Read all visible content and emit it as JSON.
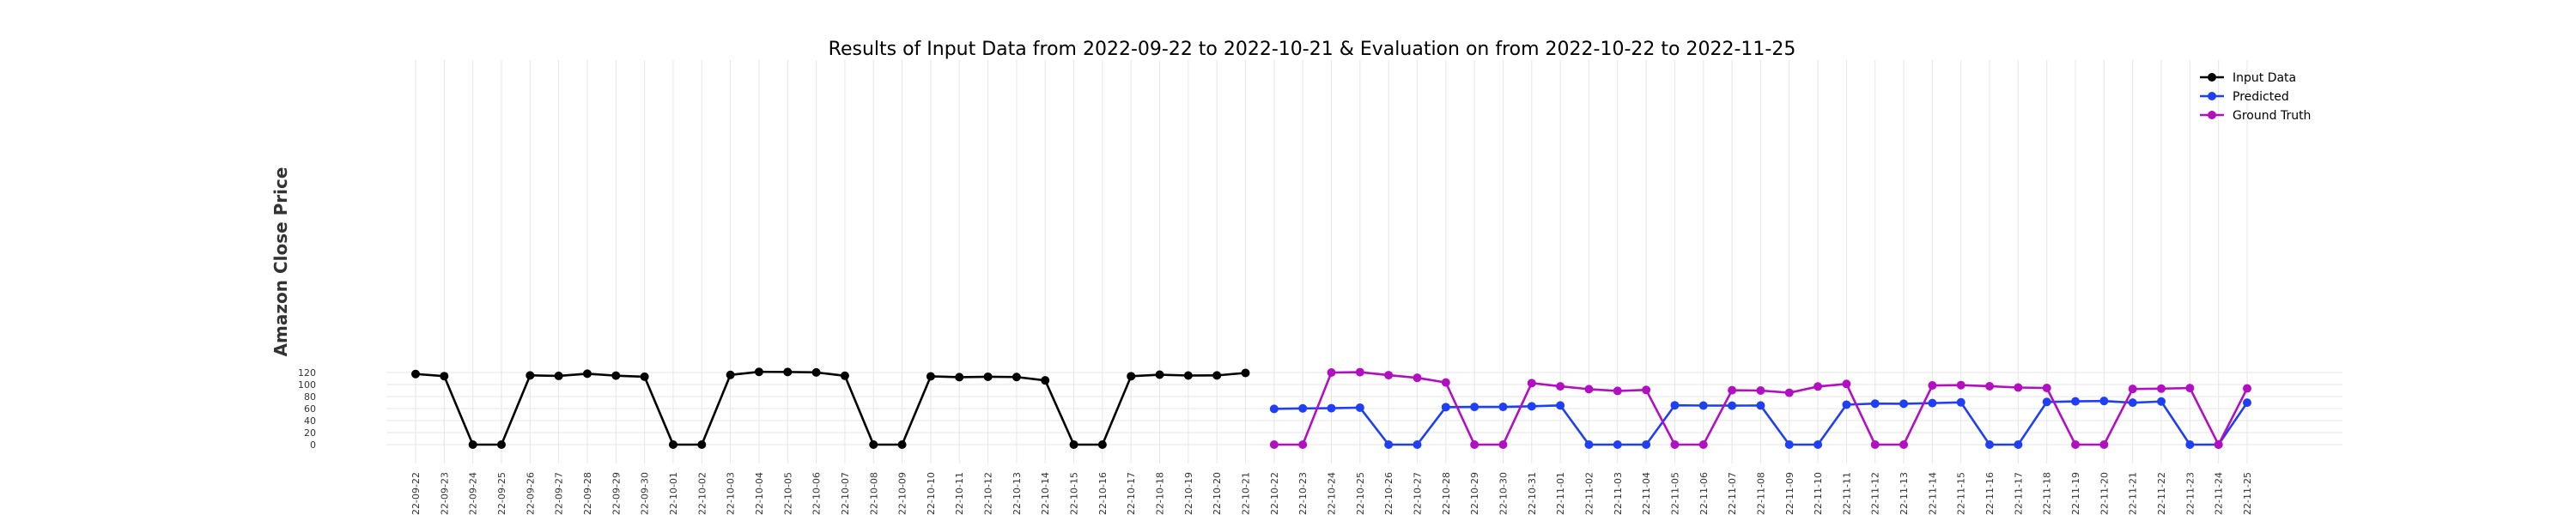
{
  "chart_data": {
    "type": "line",
    "title": "Results of Input Data from 2022-09-22 to 2022-10-21 & Evaluation on from 2022-10-22 to 2022-11-25",
    "xlabel": "",
    "ylabel": "Amazon Close Price",
    "ylim": [
      -5,
      127
    ],
    "yticks": [
      0,
      20,
      40,
      60,
      80,
      100,
      120
    ],
    "grid": true,
    "legend_position": "top-right",
    "categories": [
      "2022-09-22",
      "2022-09-23",
      "2022-09-24",
      "2022-09-25",
      "2022-09-26",
      "2022-09-27",
      "2022-09-28",
      "2022-09-29",
      "2022-09-30",
      "2022-10-01",
      "2022-10-02",
      "2022-10-03",
      "2022-10-04",
      "2022-10-05",
      "2022-10-06",
      "2022-10-07",
      "2022-10-08",
      "2022-10-09",
      "2022-10-10",
      "2022-10-11",
      "2022-10-12",
      "2022-10-13",
      "2022-10-14",
      "2022-10-15",
      "2022-10-16",
      "2022-10-17",
      "2022-10-18",
      "2022-10-19",
      "2022-10-20",
      "2022-10-21",
      "2022-10-22",
      "2022-10-23",
      "2022-10-24",
      "2022-10-25",
      "2022-10-26",
      "2022-10-27",
      "2022-10-28",
      "2022-10-29",
      "2022-10-30",
      "2022-10-31",
      "2022-11-01",
      "2022-11-02",
      "2022-11-03",
      "2022-11-04",
      "2022-11-05",
      "2022-11-06",
      "2022-11-07",
      "2022-11-08",
      "2022-11-09",
      "2022-11-10",
      "2022-11-11",
      "2022-11-12",
      "2022-11-13",
      "2022-11-14",
      "2022-11-15",
      "2022-11-16",
      "2022-11-17",
      "2022-11-18",
      "2022-11-19",
      "2022-11-20",
      "2022-11-21",
      "2022-11-22",
      "2022-11-23",
      "2022-11-24",
      "2022-11-25"
    ],
    "tick_labels": [
      "2022-09-22",
      "2022-09-23",
      "2022-09-24",
      "2022-09-25",
      "2022-09-26",
      "2022-09-27",
      "2022-09-28",
      "2022-09-29",
      "2022-09-30",
      "2022-10-01",
      "2022-10-02",
      "2022-10-03",
      "2022-10-04",
      "2022-10-05",
      "2022-10-06",
      "2022-10-07",
      "2022-10-08",
      "2022-10-09",
      "2022-10-10",
      "2022-10-11",
      "2022-10-12",
      "2022-10-13",
      "2022-10-14",
      "2022-10-15",
      "2022-10-16",
      "2022-10-17",
      "2022-10-18",
      "2022-10-19",
      "2022-10-20",
      "2022-10-21",
      "2022-10-22",
      "2022-10-23",
      "2022-10-24",
      "2022-10-25",
      "2022-10-26",
      "2022-10-27",
      "2022-10-28",
      "2022-10-29",
      "2022-10-30",
      "2022-10-31",
      "2022-11-01",
      "2022-11-02",
      "2022-11-03",
      "2022-11-04",
      "2022-11-05",
      "2022-11-06",
      "2022-11-07",
      "2022-11-08",
      "2022-11-09",
      "2022-11-10",
      "2022-11-11",
      "2022-11-12",
      "2022-11-13",
      "2022-11-14",
      "2022-11-15",
      "2022-11-16",
      "2022-11-17",
      "2022-11-18",
      "2022-11-19",
      "2022-11-20",
      "2022-11-21",
      "2022-11-22",
      "2022-11-23",
      "2022-11-24",
      "2022-11-25"
    ],
    "series": [
      {
        "name": "Input Data",
        "color": "#000000",
        "x": [
          "2022-09-22",
          "2022-09-23",
          "2022-09-24",
          "2022-09-25",
          "2022-09-26",
          "2022-09-27",
          "2022-09-28",
          "2022-09-29",
          "2022-09-30",
          "2022-10-01",
          "2022-10-02",
          "2022-10-03",
          "2022-10-04",
          "2022-10-05",
          "2022-10-06",
          "2022-10-07",
          "2022-10-08",
          "2022-10-09",
          "2022-10-10",
          "2022-10-11",
          "2022-10-12",
          "2022-10-13",
          "2022-10-14",
          "2022-10-15",
          "2022-10-16",
          "2022-10-17",
          "2022-10-18",
          "2022-10-19",
          "2022-10-20",
          "2022-10-21"
        ],
        "values": [
          117.5,
          114.0,
          0,
          0,
          115.2,
          114.4,
          118.0,
          114.8,
          113.0,
          0,
          0,
          116.0,
          121.1,
          120.9,
          120.2,
          114.6,
          0,
          0,
          113.6,
          112.3,
          112.9,
          112.5,
          106.9,
          0,
          0,
          113.8,
          116.4,
          115.0,
          115.2,
          119.3
        ]
      },
      {
        "name": "Predicted",
        "color": "#1f3ff5",
        "x": [
          "2022-10-22",
          "2022-10-23",
          "2022-10-24",
          "2022-10-25",
          "2022-10-26",
          "2022-10-27",
          "2022-10-28",
          "2022-10-29",
          "2022-10-30",
          "2022-10-31",
          "2022-11-01",
          "2022-11-02",
          "2022-11-03",
          "2022-11-04",
          "2022-11-05",
          "2022-11-06",
          "2022-11-07",
          "2022-11-08",
          "2022-11-09",
          "2022-11-10",
          "2022-11-11",
          "2022-11-12",
          "2022-11-13",
          "2022-11-14",
          "2022-11-15",
          "2022-11-16",
          "2022-11-17",
          "2022-11-18",
          "2022-11-19",
          "2022-11-20",
          "2022-11-21",
          "2022-11-22",
          "2022-11-23",
          "2022-11-24",
          "2022-11-25"
        ],
        "values": [
          59.5,
          60.3,
          60.6,
          61.5,
          0,
          0,
          62.4,
          62.7,
          62.8,
          63.8,
          65.2,
          0,
          0,
          0,
          65.4,
          65.0,
          64.9,
          65.1,
          0,
          0,
          66.5,
          68.3,
          68.0,
          69.1,
          70.3,
          0,
          0,
          71.0,
          72.0,
          72.6,
          69.8,
          71.8,
          0,
          0,
          69.8
        ]
      },
      {
        "name": "Ground Truth",
        "color": "#b30fc2",
        "x": [
          "2022-10-22",
          "2022-10-23",
          "2022-10-24",
          "2022-10-25",
          "2022-10-26",
          "2022-10-27",
          "2022-10-28",
          "2022-10-29",
          "2022-10-30",
          "2022-10-31",
          "2022-11-01",
          "2022-11-02",
          "2022-11-03",
          "2022-11-04",
          "2022-11-05",
          "2022-11-06",
          "2022-11-07",
          "2022-11-08",
          "2022-11-09",
          "2022-11-10",
          "2022-11-11",
          "2022-11-12",
          "2022-11-13",
          "2022-11-14",
          "2022-11-15",
          "2022-11-16",
          "2022-11-17",
          "2022-11-18",
          "2022-11-19",
          "2022-11-20",
          "2022-11-21",
          "2022-11-22",
          "2022-11-23",
          "2022-11-24",
          "2022-11-25"
        ],
        "values": [
          0,
          0,
          120.0,
          120.6,
          115.6,
          111.2,
          103.4,
          0,
          0,
          102.4,
          97.0,
          92.3,
          89.4,
          91.0,
          0,
          0,
          90.5,
          90.0,
          86.3,
          96.7,
          101.0,
          0,
          0,
          98.5,
          99.0,
          97.2,
          95.0,
          94.3,
          0,
          0,
          92.6,
          93.2,
          94.1,
          0,
          93.5
        ]
      }
    ]
  }
}
